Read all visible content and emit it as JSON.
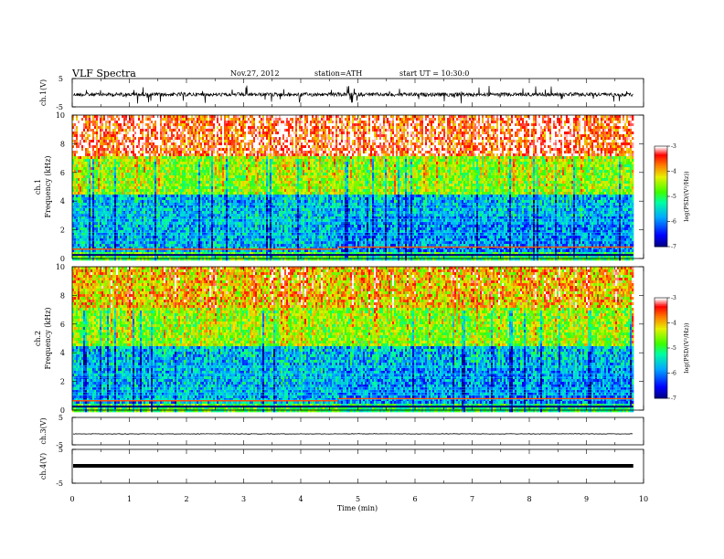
{
  "header": {
    "title": "VLF  Spectra",
    "date": "Nov.27, 2012",
    "station": "station=ATH",
    "start": "start  UT  =   10:30:0"
  },
  "chart_data": [
    {
      "type": "line",
      "name": "ch1-waveform",
      "ylabel": "ch.1(V)",
      "ylim": [
        -5,
        5
      ],
      "yticks": [
        "5",
        "-5"
      ],
      "xlim": [
        0,
        10
      ],
      "x_end": 9.82
    },
    {
      "type": "heatmap",
      "name": "ch1-spectrogram",
      "ylabel_line1": "ch.1",
      "ylabel_line2": "Frequency  (kHz)",
      "ylim": [
        0,
        10
      ],
      "yticks": [
        "0",
        "2",
        "4",
        "6",
        "8",
        "10"
      ],
      "xlim": [
        0,
        10
      ],
      "x_end": 9.82,
      "x_transition": 4.65,
      "colorbar": {
        "label": "log(PSD/(V²/Hz))",
        "range": [
          -7,
          -3
        ],
        "ticks": [
          "-3",
          "-4",
          "-5",
          "-6",
          "-7"
        ]
      }
    },
    {
      "type": "heatmap",
      "name": "ch2-spectrogram",
      "ylabel_line1": "ch.2",
      "ylabel_line2": "Frequency  (kHz)",
      "ylim": [
        0,
        10
      ],
      "yticks": [
        "0",
        "2",
        "4",
        "6",
        "8",
        "10"
      ],
      "xlim": [
        0,
        10
      ],
      "x_end": 9.82,
      "x_transition": 4.65,
      "colorbar": {
        "label": "log(PSD/(V²/Hz))",
        "range": [
          -7,
          -3
        ],
        "ticks": [
          "-3",
          "-4",
          "-5",
          "-6",
          "-7"
        ]
      }
    },
    {
      "type": "line",
      "name": "ch3-waveform",
      "ylabel": "ch.3(V)",
      "ylim": [
        -5,
        5
      ],
      "yticks": [
        "5",
        "-5"
      ],
      "xlim": [
        0,
        10
      ],
      "x_end": 9.82
    },
    {
      "type": "line",
      "name": "ch4-waveform",
      "ylabel": "ch.4(V)",
      "ylim": [
        -5,
        5
      ],
      "yticks": [
        "5",
        "-5"
      ],
      "xlim": [
        0,
        10
      ],
      "x_end": 9.82,
      "x_ticks": [
        "0",
        "1",
        "2",
        "3",
        "4",
        "5",
        "6",
        "7",
        "8",
        "9",
        "10"
      ],
      "xlabel": "Time  (min)"
    }
  ]
}
